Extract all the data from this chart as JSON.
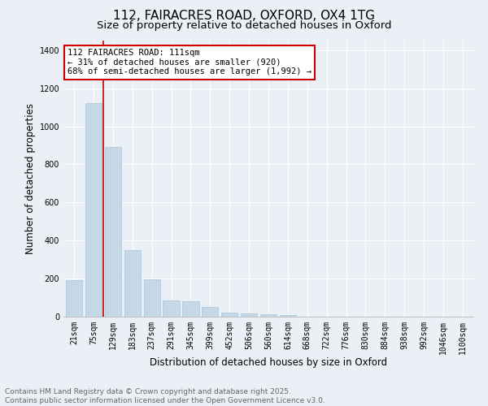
{
  "title1": "112, FAIRACRES ROAD, OXFORD, OX4 1TG",
  "title2": "Size of property relative to detached houses in Oxford",
  "xlabel": "Distribution of detached houses by size in Oxford",
  "ylabel": "Number of detached properties",
  "categories": [
    "21sqm",
    "75sqm",
    "129sqm",
    "183sqm",
    "237sqm",
    "291sqm",
    "345sqm",
    "399sqm",
    "452sqm",
    "506sqm",
    "560sqm",
    "614sqm",
    "668sqm",
    "722sqm",
    "776sqm",
    "830sqm",
    "884sqm",
    "938sqm",
    "992sqm",
    "1046sqm",
    "1100sqm"
  ],
  "values": [
    193,
    1120,
    890,
    350,
    195,
    85,
    80,
    50,
    20,
    15,
    12,
    10,
    0,
    0,
    0,
    0,
    0,
    0,
    0,
    0,
    0
  ],
  "bar_color": "#c5d8e8",
  "bar_edgecolor": "#a8c4d8",
  "vline_color": "#cc0000",
  "vline_xindex": 1.5,
  "annotation_text": "112 FAIRACRES ROAD: 111sqm\n← 31% of detached houses are smaller (920)\n68% of semi-detached houses are larger (1,992) →",
  "annotation_box_facecolor": "white",
  "annotation_box_edgecolor": "#cc0000",
  "ylim": [
    0,
    1450
  ],
  "yticks": [
    0,
    200,
    400,
    600,
    800,
    1000,
    1200,
    1400
  ],
  "background_color": "#eaf0f6",
  "footer1": "Contains HM Land Registry data © Crown copyright and database right 2025.",
  "footer2": "Contains public sector information licensed under the Open Government Licence v3.0.",
  "title_fontsize": 11,
  "subtitle_fontsize": 9.5,
  "tick_fontsize": 7,
  "label_fontsize": 8.5,
  "annotation_fontsize": 7.5,
  "footer_fontsize": 6.5
}
